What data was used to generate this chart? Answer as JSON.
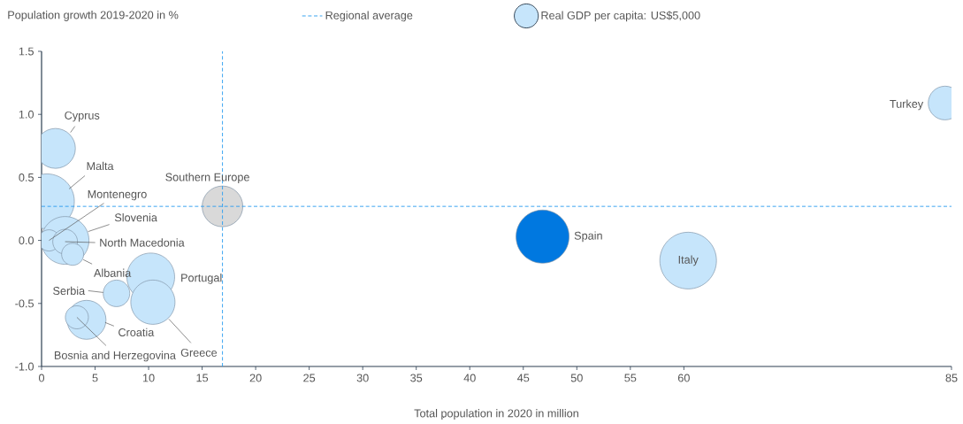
{
  "chart_data": {
    "type": "bubble",
    "ylabel": "Population growth 2019-2020 in %",
    "xlabel": "Total population in 2020 in million",
    "legend": "top",
    "x": [
      1.3,
      0.5,
      2.2,
      0.7,
      2.2,
      2.9,
      4.2,
      3.3,
      7.0,
      10.2,
      10.4,
      16.9,
      46.8,
      60.4,
      84.4
    ],
    "values": [
      0.73,
      0.31,
      0.0,
      0.0,
      -0.01,
      -0.11,
      -0.63,
      -0.61,
      -0.42,
      -0.29,
      -0.49,
      0.27,
      0.03,
      -0.16,
      1.09
    ],
    "sizes": [
      13700,
      26000,
      19700,
      3900,
      5300,
      4200,
      13100,
      4600,
      6100,
      19700,
      16900,
      14300,
      24300,
      27700,
      9800
    ],
    "colors": [
      "#c6e5fb",
      "#c6e5fb",
      "#c6e5fb",
      "#c6e5fb",
      "#c6e5fb",
      "#c6e5fb",
      "#c6e5fb",
      "#c6e5fb",
      "#c6e5fb",
      "#c6e5fb",
      "#c6e5fb",
      "#d9d9d9",
      "#0078e0",
      "#c6e5fb",
      "#c6e5fb"
    ],
    "size_legend": [
      {
        "value": 5000,
        "label": "Real GDP per capita: US$5,000"
      }
    ],
    "xlim": [
      0,
      85
    ],
    "xticks": [
      0,
      5,
      10,
      15,
      20,
      25,
      30,
      35,
      40,
      45,
      50,
      55,
      60,
      85
    ],
    "ylim": [
      -1,
      1.5
    ],
    "yticks": [
      {
        "value": -1,
        "label": "-1.0"
      },
      {
        "value": -0.5,
        "label": "-0.5"
      },
      {
        "value": 0,
        "label": "0.0"
      },
      {
        "value": 0.5,
        "label": "0.5"
      },
      {
        "value": 1,
        "label": "1.0"
      },
      {
        "value": 1.5,
        "label": "1.5"
      }
    ],
    "ref_lines": [
      {
        "axis": "y",
        "value": 0.27,
        "label": "Regional average",
        "color": "#2d9ef0",
        "line_style": "dashed"
      },
      {
        "axis": "x",
        "value": 16.9,
        "color": "#2d9ef0",
        "line_style": "dashed"
      }
    ],
    "annotations": [
      {
        "text": "Cyprus",
        "x": 1.3,
        "y": 0.73
      },
      "Malta",
      "Slovenia",
      {
        "text": "Montenegro",
        "x": 0.7,
        "y": 0.0
      },
      {
        "text": "North Macedonia",
        "x": 2.2,
        "y": -0.01
      },
      {
        "text": "Albania",
        "x": 2.9,
        "y": -0.11
      },
      {
        "text": "Croatia",
        "x": 4.2,
        "y": -0.63
      },
      {
        "text": "Bosnia and Herzegovina",
        "x": 3.3,
        "y": -0.61
      },
      {
        "text": "Serbia",
        "x": 7.0,
        "y": -0.42
      },
      {
        "text": "Portugal",
        "x": 10.2,
        "y": -0.29
      },
      "Greece",
      {
        "text": "Southern Europe",
        "x": 16.9,
        "y": 0.27
      },
      {
        "text": "Spain",
        "x": 46.8,
        "y": 0.03
      },
      {
        "text": "Italy",
        "x": 60.4,
        "y": -0.16
      },
      {
        "text": "Turkey",
        "x": 84.4,
        "y": 1.09
      }
    ]
  }
}
